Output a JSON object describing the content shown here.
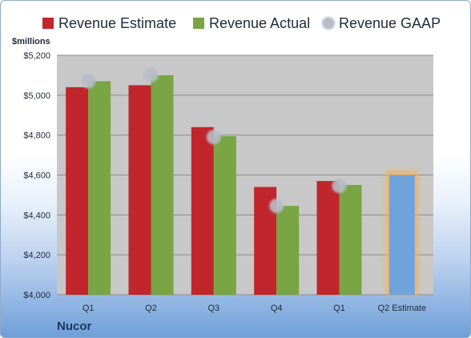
{
  "company": "Nucor",
  "chart_data": {
    "type": "bar",
    "unit_label": "$millions",
    "categories": [
      "Q1",
      "Q2",
      "Q3",
      "Q4",
      "Q1",
      "Q2 Estimate"
    ],
    "series": [
      {
        "name": "Revenue Estimate",
        "color": "#c0262b",
        "values": [
          5040,
          5050,
          4840,
          4540,
          4570,
          null
        ]
      },
      {
        "name": "Revenue Actual",
        "color": "#79a545",
        "values": [
          5070,
          5100,
          4795,
          4445,
          4550,
          null
        ]
      },
      {
        "name": "Revenue GAAP",
        "color": "#b8bcc6",
        "marker": "dot",
        "values": [
          5070,
          5100,
          4790,
          4445,
          4545,
          null
        ]
      }
    ],
    "estimate_bar": {
      "category": "Q2 Estimate",
      "value": 4600,
      "color": "#6fa3db",
      "glow": "#f6b052"
    },
    "ylim": [
      4000,
      5200
    ],
    "yticks": [
      4000,
      4200,
      4400,
      4600,
      4800,
      5000,
      5200
    ],
    "ytick_labels": [
      "$4,000",
      "$4,200",
      "$4,400",
      "$4,600",
      "$4,800",
      "$5,000",
      "$5,200"
    ],
    "legend_position": "top",
    "grid": true,
    "plot_background": "#c8c8c8"
  }
}
